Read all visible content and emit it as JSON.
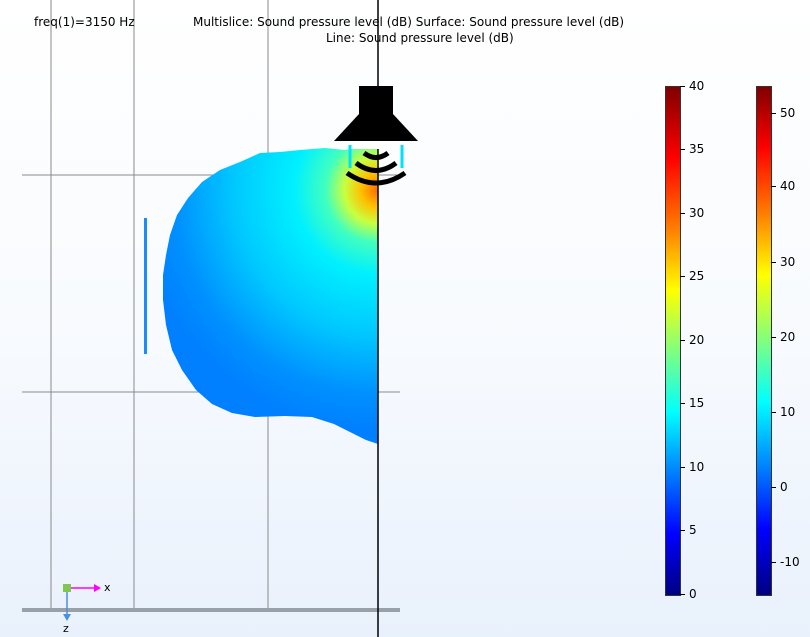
{
  "header": {
    "freq_label": "freq(1)=3150 Hz",
    "title_line1": "Multislice: Sound pressure level (dB)  Surface: Sound pressure level (dB)",
    "title_line2": "Line: Sound pressure level (dB)"
  },
  "colorbar_left": {
    "min": 0,
    "max": 40,
    "tick_labels": [
      "40",
      "35",
      "30",
      "25",
      "20",
      "15",
      "10",
      "5",
      "0"
    ]
  },
  "colorbar_right": {
    "min": -14,
    "max": 53,
    "tick_labels": [
      "50",
      "40",
      "30",
      "20",
      "10",
      "0",
      "-10"
    ]
  },
  "axes_triad": {
    "x_label": "x",
    "z_label": "z"
  },
  "colors": {
    "grid": "#8a8a8a",
    "field_light": "#00f0ff",
    "field_mid": "#00aaff",
    "field_edge": "#0090ff",
    "hotspot": "#ff8c00",
    "speaker": "#000000"
  },
  "icons": {
    "speaker": "speaker-icon",
    "sound_waves": "sound-waves-icon"
  }
}
